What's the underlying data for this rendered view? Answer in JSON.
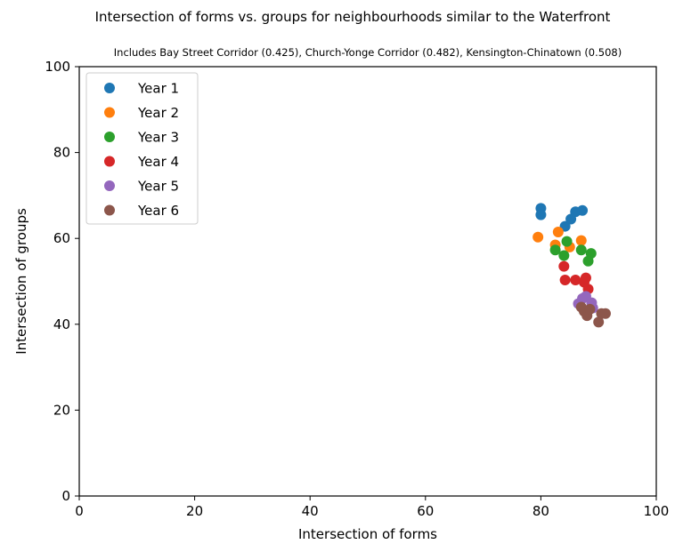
{
  "chart_data": {
    "type": "scatter",
    "title": "Intersection of forms vs. groups for neighbourhoods similar to the Waterfront",
    "subtitle": "Includes Bay Street Corridor (0.425), Church-Yonge Corridor (0.482), Kensington-Chinatown (0.508)",
    "xlabel": "Intersection of forms",
    "ylabel": "Intersection of groups",
    "xlim": [
      0,
      100
    ],
    "ylim": [
      0,
      100
    ],
    "xticks": [
      "0",
      "20",
      "40",
      "60",
      "80",
      "100"
    ],
    "yticks": [
      "0",
      "20",
      "40",
      "60",
      "80",
      "100"
    ],
    "grid": false,
    "legend_position": "top-left",
    "series": [
      {
        "name": "Year 1",
        "color": "#1f77b4",
        "points": [
          [
            80.0,
            67.0
          ],
          [
            80.0,
            65.5
          ],
          [
            84.2,
            62.8
          ],
          [
            85.2,
            64.5
          ],
          [
            86.0,
            66.2
          ],
          [
            87.2,
            66.5
          ]
        ]
      },
      {
        "name": "Year 2",
        "color": "#ff7f0e",
        "points": [
          [
            79.5,
            60.3
          ],
          [
            82.5,
            58.5
          ],
          [
            83.0,
            61.5
          ],
          [
            85.0,
            58.0
          ],
          [
            87.0,
            59.5
          ]
        ]
      },
      {
        "name": "Year 3",
        "color": "#2ca02c",
        "points": [
          [
            82.5,
            57.3
          ],
          [
            84.0,
            56.0
          ],
          [
            84.5,
            59.3
          ],
          [
            87.0,
            57.3
          ],
          [
            88.2,
            54.7
          ],
          [
            88.7,
            56.5
          ]
        ]
      },
      {
        "name": "Year 4",
        "color": "#d62728",
        "points": [
          [
            84.0,
            53.5
          ],
          [
            84.2,
            50.3
          ],
          [
            86.0,
            50.3
          ],
          [
            87.5,
            49.8
          ],
          [
            87.8,
            50.8
          ],
          [
            88.2,
            48.2
          ]
        ]
      },
      {
        "name": "Year 5",
        "color": "#9467bd",
        "points": [
          [
            86.5,
            44.8
          ],
          [
            87.2,
            46.0
          ],
          [
            87.8,
            46.5
          ],
          [
            88.8,
            45.0
          ],
          [
            89.0,
            43.8
          ]
        ]
      },
      {
        "name": "Year 6",
        "color": "#8c564b",
        "points": [
          [
            87.0,
            44.0
          ],
          [
            87.5,
            43.0
          ],
          [
            88.0,
            42.0
          ],
          [
            88.5,
            43.5
          ],
          [
            90.0,
            40.5
          ],
          [
            90.5,
            42.5
          ],
          [
            91.2,
            42.5
          ]
        ]
      }
    ]
  }
}
